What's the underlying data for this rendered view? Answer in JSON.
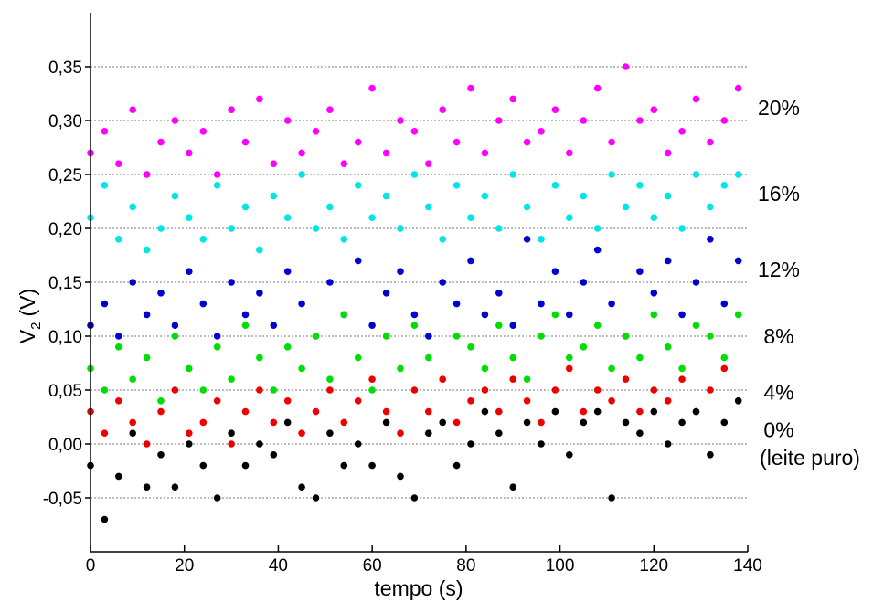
{
  "chart_data": {
    "type": "scatter",
    "title": "",
    "xlabel": "tempo (s)",
    "ylabel_main": "V",
    "ylabel_sub": "2",
    "ylabel_unit": "(V)",
    "xlim": [
      0,
      140
    ],
    "ylim": [
      -0.1,
      0.4
    ],
    "x_ticks": [
      0,
      20,
      40,
      60,
      80,
      100,
      120,
      140
    ],
    "x_tick_labels": [
      "0",
      "20",
      "40",
      "60",
      "80",
      "100",
      "120",
      "140"
    ],
    "y_ticks": [
      -0.05,
      0.0,
      0.05,
      0.1,
      0.15,
      0.2,
      0.25,
      0.3,
      0.35
    ],
    "y_tick_labels": [
      "-0,05",
      "0,00",
      "0,05",
      "0,10",
      "0,15",
      "0,20",
      "0,25",
      "0,30",
      "0,35"
    ],
    "grid": "horizontal dotted",
    "legend": "series labels at right edge",
    "series": [
      {
        "name": "20%",
        "color": "#ff00ff",
        "label_y": 0.312,
        "x": [
          0,
          3,
          6,
          9,
          12,
          15,
          18,
          21,
          24,
          27,
          30,
          33,
          36,
          39,
          42,
          45,
          48,
          51,
          54,
          57,
          60,
          63,
          66,
          69,
          72,
          75,
          78,
          81,
          84,
          87,
          90,
          93,
          96,
          99,
          102,
          105,
          108,
          111,
          114,
          117,
          120,
          123,
          126,
          129,
          132,
          135,
          138
        ],
        "y": [
          0.27,
          0.29,
          0.26,
          0.31,
          0.25,
          0.28,
          0.3,
          0.27,
          0.29,
          0.25,
          0.31,
          0.28,
          0.32,
          0.26,
          0.3,
          0.27,
          0.29,
          0.31,
          0.26,
          0.28,
          0.33,
          0.27,
          0.3,
          0.29,
          0.26,
          0.31,
          0.28,
          0.33,
          0.27,
          0.3,
          0.32,
          0.28,
          0.29,
          0.31,
          0.27,
          0.3,
          0.33,
          0.28,
          0.35,
          0.3,
          0.31,
          0.27,
          0.29,
          0.32,
          0.28,
          0.3,
          0.33
        ]
      },
      {
        "name": "16%",
        "color": "#00e5e5",
        "label_y": 0.232,
        "x": [
          0,
          3,
          6,
          9,
          12,
          15,
          18,
          21,
          24,
          27,
          30,
          33,
          36,
          39,
          42,
          45,
          48,
          51,
          54,
          57,
          60,
          63,
          66,
          69,
          72,
          75,
          78,
          81,
          84,
          87,
          90,
          93,
          96,
          99,
          102,
          105,
          108,
          111,
          114,
          117,
          120,
          123,
          126,
          129,
          132,
          135,
          138
        ],
        "y": [
          0.21,
          0.24,
          0.19,
          0.22,
          0.18,
          0.2,
          0.23,
          0.21,
          0.19,
          0.24,
          0.2,
          0.22,
          0.18,
          0.23,
          0.21,
          0.25,
          0.2,
          0.22,
          0.19,
          0.24,
          0.21,
          0.23,
          0.2,
          0.25,
          0.22,
          0.19,
          0.24,
          0.21,
          0.23,
          0.2,
          0.25,
          0.22,
          0.19,
          0.24,
          0.21,
          0.23,
          0.2,
          0.25,
          0.22,
          0.24,
          0.21,
          0.23,
          0.2,
          0.25,
          0.22,
          0.24,
          0.25
        ]
      },
      {
        "name": "12%",
        "color": "#0000d0",
        "label_y": 0.162,
        "x": [
          0,
          3,
          6,
          9,
          12,
          15,
          18,
          21,
          24,
          27,
          30,
          33,
          36,
          39,
          42,
          45,
          48,
          51,
          54,
          57,
          60,
          63,
          66,
          69,
          72,
          75,
          78,
          81,
          84,
          87,
          90,
          93,
          96,
          99,
          102,
          105,
          108,
          111,
          114,
          117,
          120,
          123,
          126,
          129,
          132,
          135,
          138
        ],
        "y": [
          0.11,
          0.13,
          0.1,
          0.15,
          0.12,
          0.14,
          0.11,
          0.16,
          0.13,
          0.1,
          0.15,
          0.12,
          0.14,
          0.11,
          0.16,
          0.13,
          0.1,
          0.15,
          0.12,
          0.17,
          0.11,
          0.14,
          0.16,
          0.12,
          0.1,
          0.15,
          0.13,
          0.17,
          0.12,
          0.14,
          0.11,
          0.19,
          0.13,
          0.16,
          0.12,
          0.15,
          0.18,
          0.13,
          0.1,
          0.16,
          0.14,
          0.17,
          0.12,
          0.15,
          0.19,
          0.13,
          0.17
        ]
      },
      {
        "name": "8%",
        "color": "#00dd00",
        "label_y": 0.1,
        "x": [
          0,
          3,
          6,
          9,
          12,
          15,
          18,
          21,
          24,
          27,
          30,
          33,
          36,
          39,
          42,
          45,
          48,
          51,
          54,
          57,
          60,
          63,
          66,
          69,
          72,
          75,
          78,
          81,
          84,
          87,
          90,
          93,
          96,
          99,
          102,
          105,
          108,
          111,
          114,
          117,
          120,
          123,
          126,
          129,
          132,
          135,
          138
        ],
        "y": [
          0.07,
          0.05,
          0.09,
          0.06,
          0.08,
          0.04,
          0.1,
          0.07,
          0.05,
          0.09,
          0.06,
          0.11,
          0.08,
          0.05,
          0.09,
          0.07,
          0.1,
          0.06,
          0.12,
          0.08,
          0.05,
          0.1,
          0.07,
          0.11,
          0.08,
          0.06,
          0.1,
          0.09,
          0.07,
          0.11,
          0.08,
          0.06,
          0.1,
          0.12,
          0.08,
          0.09,
          0.11,
          0.07,
          0.1,
          0.08,
          0.12,
          0.09,
          0.07,
          0.11,
          0.1,
          0.08,
          0.12
        ]
      },
      {
        "name": "4%",
        "color": "#ee0000",
        "label_y": 0.048,
        "x": [
          0,
          3,
          6,
          9,
          12,
          15,
          18,
          21,
          24,
          27,
          30,
          33,
          36,
          39,
          42,
          45,
          48,
          51,
          54,
          57,
          60,
          63,
          66,
          69,
          72,
          75,
          78,
          81,
          84,
          87,
          90,
          93,
          96,
          99,
          102,
          105,
          108,
          111,
          114,
          117,
          120,
          123,
          126,
          129,
          132,
          135,
          138
        ],
        "y": [
          0.03,
          0.01,
          0.04,
          0.02,
          0.0,
          0.03,
          0.05,
          0.01,
          0.02,
          0.04,
          0.0,
          0.03,
          0.05,
          0.02,
          0.04,
          0.01,
          0.03,
          0.05,
          0.02,
          0.04,
          0.06,
          0.03,
          0.01,
          0.05,
          0.03,
          0.06,
          0.02,
          0.04,
          0.05,
          0.03,
          0.06,
          0.04,
          0.02,
          0.05,
          0.07,
          0.03,
          0.05,
          0.04,
          0.06,
          0.03,
          0.05,
          0.04,
          0.06,
          0.03,
          0.05,
          0.07,
          0.04
        ]
      },
      {
        "name": "0%",
        "color": "#000000",
        "label_y": 0.013,
        "x": [
          0,
          3,
          6,
          9,
          12,
          15,
          18,
          21,
          24,
          27,
          30,
          33,
          36,
          39,
          42,
          45,
          48,
          51,
          54,
          57,
          60,
          63,
          66,
          69,
          72,
          75,
          78,
          81,
          84,
          87,
          90,
          93,
          96,
          99,
          102,
          105,
          108,
          111,
          114,
          117,
          120,
          123,
          126,
          129,
          132,
          135,
          138
        ],
        "y": [
          -0.02,
          -0.07,
          -0.03,
          0.01,
          -0.04,
          -0.01,
          -0.04,
          0.0,
          -0.02,
          -0.05,
          0.01,
          -0.02,
          0.0,
          -0.01,
          0.02,
          -0.04,
          -0.05,
          0.01,
          -0.02,
          0.0,
          -0.02,
          0.02,
          -0.03,
          -0.05,
          0.01,
          0.02,
          -0.02,
          0.0,
          0.03,
          0.01,
          -0.04,
          0.02,
          0.0,
          0.03,
          -0.01,
          0.02,
          0.03,
          -0.05,
          0.02,
          0.01,
          0.03,
          0.0,
          0.02,
          0.03,
          -0.01,
          0.02,
          0.04
        ]
      }
    ],
    "extra_label": "(leite puro)"
  }
}
